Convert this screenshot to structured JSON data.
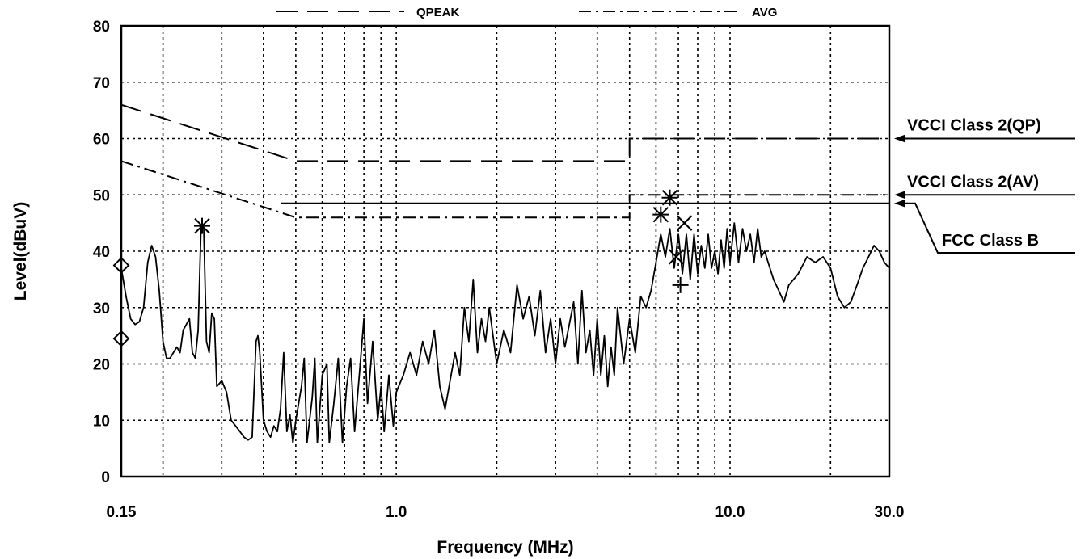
{
  "chart_data": {
    "type": "line",
    "title": "",
    "xlabel": "Frequency (MHz)",
    "ylabel": "Level(dBuV)",
    "x_scale": "log",
    "xlim": [
      0.15,
      30.0
    ],
    "ylim": [
      0,
      80
    ],
    "x_tick_labels": [
      {
        "value": 0.15,
        "label": "0.15"
      },
      {
        "value": 1.0,
        "label": "1.0"
      },
      {
        "value": 10.0,
        "label": "10.0"
      },
      {
        "value": 30.0,
        "label": "30.0"
      }
    ],
    "y_ticks": [
      0,
      10,
      20,
      30,
      40,
      50,
      60,
      70,
      80
    ],
    "grid": true,
    "legend_position": "top",
    "legend": [
      {
        "label": "QPEAK",
        "style": "long-dash"
      },
      {
        "label": "AVG",
        "style": "dash-dot"
      }
    ],
    "limit_lines": [
      {
        "label": "VCCI Class 2(QP)",
        "style": "long-dash",
        "points": [
          [
            0.15,
            66
          ],
          [
            0.5,
            56
          ],
          [
            5.0,
            56
          ],
          [
            5.0,
            60
          ],
          [
            30.0,
            60
          ]
        ]
      },
      {
        "label": "VCCI Class 2(AV)",
        "style": "dash-dot",
        "points": [
          [
            0.15,
            56
          ],
          [
            0.5,
            46
          ],
          [
            5.0,
            46
          ],
          [
            5.0,
            50
          ],
          [
            30.0,
            50
          ]
        ]
      },
      {
        "label": "FCC Class B",
        "style": "solid",
        "points": [
          [
            0.45,
            48.5
          ],
          [
            30.0,
            48.5
          ]
        ]
      }
    ],
    "markers": [
      {
        "x": 0.15,
        "y": 37.5,
        "shape": "diamond"
      },
      {
        "x": 0.15,
        "y": 24.5,
        "shape": "diamond"
      },
      {
        "x": 0.262,
        "y": 44.5,
        "shape": "asterisk"
      },
      {
        "x": 6.2,
        "y": 46.5,
        "shape": "asterisk"
      },
      {
        "x": 6.6,
        "y": 49.5,
        "shape": "asterisk"
      },
      {
        "x": 7.3,
        "y": 45.0,
        "shape": "x"
      },
      {
        "x": 7.1,
        "y": 34.0,
        "shape": "plus"
      },
      {
        "x": 6.9,
        "y": 39.0,
        "shape": "x"
      }
    ],
    "series": [
      {
        "style": "solid",
        "points": [
          [
            0.15,
            37
          ],
          [
            0.155,
            32
          ],
          [
            0.16,
            28
          ],
          [
            0.165,
            27
          ],
          [
            0.17,
            27.5
          ],
          [
            0.175,
            30
          ],
          [
            0.18,
            38
          ],
          [
            0.185,
            41
          ],
          [
            0.19,
            39
          ],
          [
            0.195,
            33
          ],
          [
            0.2,
            24
          ],
          [
            0.205,
            21
          ],
          [
            0.21,
            21
          ],
          [
            0.215,
            22
          ],
          [
            0.22,
            23
          ],
          [
            0.225,
            22
          ],
          [
            0.23,
            26
          ],
          [
            0.235,
            27
          ],
          [
            0.24,
            28
          ],
          [
            0.245,
            22
          ],
          [
            0.25,
            21
          ],
          [
            0.255,
            26
          ],
          [
            0.26,
            44
          ],
          [
            0.265,
            44
          ],
          [
            0.27,
            24
          ],
          [
            0.275,
            22
          ],
          [
            0.28,
            29
          ],
          [
            0.285,
            28
          ],
          [
            0.29,
            16
          ],
          [
            0.3,
            17
          ],
          [
            0.31,
            15
          ],
          [
            0.32,
            10
          ],
          [
            0.33,
            9
          ],
          [
            0.34,
            8
          ],
          [
            0.35,
            7
          ],
          [
            0.36,
            6.5
          ],
          [
            0.37,
            7
          ],
          [
            0.38,
            24
          ],
          [
            0.385,
            25
          ],
          [
            0.39,
            22
          ],
          [
            0.4,
            10
          ],
          [
            0.41,
            8
          ],
          [
            0.42,
            7
          ],
          [
            0.43,
            9
          ],
          [
            0.44,
            8
          ],
          [
            0.45,
            12
          ],
          [
            0.46,
            22
          ],
          [
            0.47,
            8
          ],
          [
            0.48,
            11
          ],
          [
            0.49,
            6
          ],
          [
            0.5,
            10
          ],
          [
            0.52,
            16
          ],
          [
            0.53,
            21
          ],
          [
            0.54,
            6
          ],
          [
            0.56,
            14
          ],
          [
            0.57,
            21
          ],
          [
            0.58,
            6
          ],
          [
            0.6,
            18
          ],
          [
            0.62,
            20
          ],
          [
            0.63,
            6
          ],
          [
            0.65,
            13
          ],
          [
            0.67,
            21
          ],
          [
            0.69,
            6
          ],
          [
            0.71,
            16
          ],
          [
            0.73,
            21
          ],
          [
            0.75,
            8
          ],
          [
            0.78,
            20
          ],
          [
            0.8,
            28
          ],
          [
            0.82,
            13
          ],
          [
            0.85,
            24
          ],
          [
            0.88,
            10
          ],
          [
            0.9,
            16
          ],
          [
            0.92,
            8
          ],
          [
            0.95,
            18
          ],
          [
            0.98,
            9
          ],
          [
            1.0,
            15
          ],
          [
            1.05,
            18
          ],
          [
            1.1,
            22
          ],
          [
            1.15,
            18
          ],
          [
            1.2,
            24
          ],
          [
            1.25,
            20
          ],
          [
            1.3,
            26
          ],
          [
            1.35,
            16
          ],
          [
            1.4,
            12
          ],
          [
            1.5,
            22
          ],
          [
            1.55,
            18
          ],
          [
            1.6,
            30
          ],
          [
            1.65,
            24
          ],
          [
            1.7,
            35
          ],
          [
            1.75,
            22
          ],
          [
            1.8,
            28
          ],
          [
            1.85,
            24
          ],
          [
            1.9,
            30
          ],
          [
            2.0,
            20
          ],
          [
            2.1,
            26
          ],
          [
            2.2,
            22
          ],
          [
            2.3,
            34
          ],
          [
            2.4,
            28
          ],
          [
            2.5,
            32
          ],
          [
            2.6,
            25
          ],
          [
            2.7,
            33
          ],
          [
            2.8,
            22
          ],
          [
            2.9,
            28
          ],
          [
            3.0,
            20
          ],
          [
            3.1,
            28
          ],
          [
            3.2,
            23
          ],
          [
            3.4,
            31
          ],
          [
            3.5,
            20
          ],
          [
            3.6,
            33
          ],
          [
            3.7,
            22
          ],
          [
            3.8,
            26
          ],
          [
            3.9,
            18
          ],
          [
            4.0,
            28
          ],
          [
            4.1,
            18
          ],
          [
            4.2,
            25
          ],
          [
            4.3,
            16
          ],
          [
            4.4,
            23
          ],
          [
            4.5,
            18
          ],
          [
            4.6,
            30
          ],
          [
            4.8,
            20
          ],
          [
            5.0,
            28
          ],
          [
            5.2,
            22
          ],
          [
            5.4,
            32
          ],
          [
            5.6,
            30
          ],
          [
            5.8,
            33
          ],
          [
            6.0,
            38
          ],
          [
            6.2,
            43
          ],
          [
            6.4,
            39
          ],
          [
            6.6,
            44
          ],
          [
            6.8,
            37
          ],
          [
            7.0,
            43
          ],
          [
            7.2,
            36
          ],
          [
            7.4,
            43
          ],
          [
            7.6,
            35
          ],
          [
            7.8,
            43
          ],
          [
            8.0,
            36
          ],
          [
            8.2,
            41
          ],
          [
            8.4,
            37
          ],
          [
            8.6,
            43
          ],
          [
            8.8,
            37
          ],
          [
            9.0,
            40
          ],
          [
            9.2,
            36
          ],
          [
            9.4,
            42
          ],
          [
            9.6,
            37
          ],
          [
            9.8,
            44
          ],
          [
            10.0,
            38
          ],
          [
            10.3,
            45
          ],
          [
            10.6,
            38
          ],
          [
            10.9,
            44
          ],
          [
            11.2,
            40
          ],
          [
            11.5,
            43
          ],
          [
            11.8,
            38
          ],
          [
            12.1,
            44
          ],
          [
            12.4,
            39
          ],
          [
            12.7,
            40
          ],
          [
            13.0,
            38
          ],
          [
            13.5,
            35
          ],
          [
            14.0,
            33
          ],
          [
            14.5,
            31
          ],
          [
            15.0,
            34
          ],
          [
            16.0,
            36
          ],
          [
            17.0,
            39
          ],
          [
            18.0,
            38
          ],
          [
            19.0,
            39
          ],
          [
            20.0,
            37
          ],
          [
            21.0,
            32
          ],
          [
            22.0,
            30
          ],
          [
            23.0,
            31
          ],
          [
            24.0,
            34
          ],
          [
            25.0,
            37
          ],
          [
            26.0,
            39
          ],
          [
            27.0,
            41
          ],
          [
            28.0,
            40
          ],
          [
            29.0,
            38
          ],
          [
            30.0,
            37
          ]
        ]
      }
    ]
  }
}
